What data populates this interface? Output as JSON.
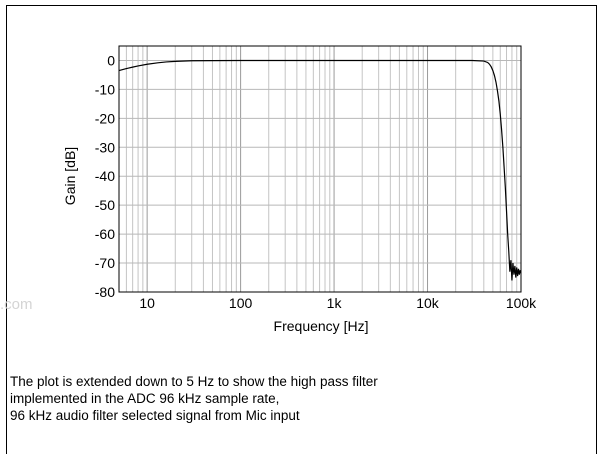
{
  "watermark": ".com",
  "caption": [
    "The plot is extended down to 5 Hz to show the high pass filter",
    "implemented in the ADC 96 kHz sample rate,",
    "96 kHz audio filter selected signal from Mic input"
  ],
  "chart_data": {
    "type": "line",
    "xlabel": "Frequency [Hz]",
    "ylabel": "Gain [dB]",
    "x_scale": "log",
    "xlim": [
      5,
      100000
    ],
    "ylim": [
      -80,
      5
    ],
    "grid": true,
    "x_ticks": [
      10,
      100,
      1000,
      10000,
      100000
    ],
    "x_tick_labels": [
      "10",
      "100",
      "1k",
      "10k",
      "100k"
    ],
    "y_ticks": [
      0,
      -10,
      -20,
      -30,
      -40,
      -50,
      -60,
      -70,
      -80
    ],
    "y_tick_labels": [
      "0",
      "-10",
      "-20",
      "-30",
      "-40",
      "-50",
      "-60",
      "-70",
      "-80"
    ],
    "series": [
      {
        "x": [
          5,
          6,
          7,
          8,
          10,
          13,
          16,
          20,
          30,
          50,
          100,
          1000,
          10000,
          30000,
          40000,
          44000,
          46000,
          48000,
          50000,
          52000,
          54000,
          56000,
          58000,
          60000,
          62000,
          64000,
          66000,
          68000,
          70000,
          72000,
          74000,
          76000,
          78000,
          80000,
          82000,
          84000,
          86000,
          88000,
          90000,
          92000,
          94000,
          96000,
          98000,
          100000
        ],
        "y": [
          -3.5,
          -2.8,
          -2.3,
          -1.9,
          -1.3,
          -0.8,
          -0.5,
          -0.3,
          -0.1,
          -0.05,
          0,
          0,
          0,
          0,
          -0.2,
          -0.7,
          -1.3,
          -2.2,
          -3.5,
          -5.2,
          -7.5,
          -10.5,
          -14,
          -18.5,
          -24,
          -30,
          -37,
          -44,
          -52,
          -60,
          -66,
          -73,
          -69,
          -76,
          -70,
          -74,
          -71,
          -75,
          -71.5,
          -74.5,
          -72,
          -74,
          -72.5,
          -73.5
        ]
      }
    ]
  }
}
